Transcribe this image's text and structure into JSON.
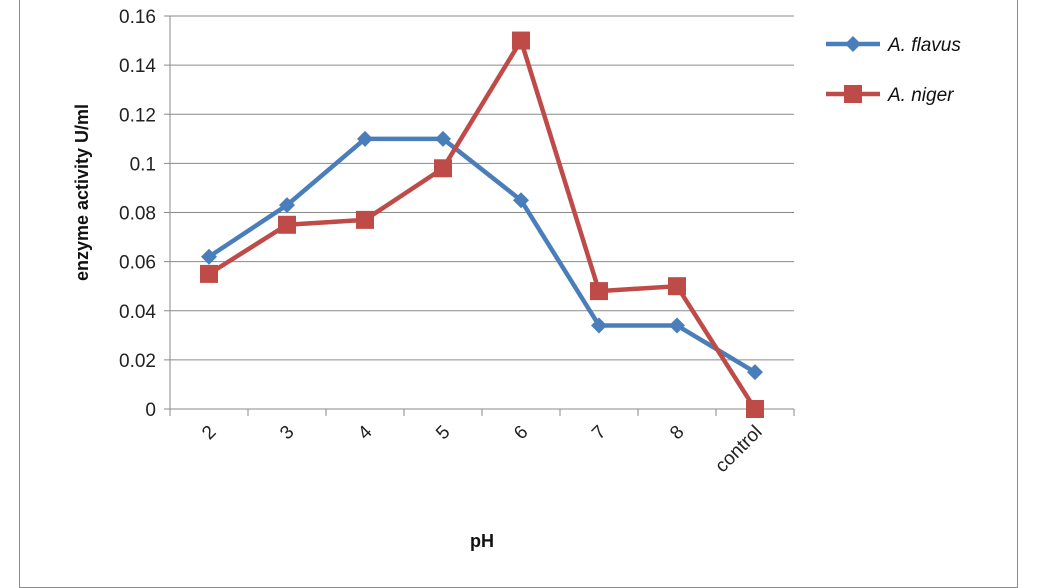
{
  "chart_data": {
    "type": "line",
    "categories": [
      "2",
      "3",
      "4",
      "5",
      "6",
      "7",
      "8",
      "control"
    ],
    "series": [
      {
        "name": "A. flavus",
        "color": "#4a7ebb",
        "marker": "diamond",
        "values": [
          0.062,
          0.083,
          0.11,
          0.11,
          0.085,
          0.034,
          0.034,
          0.015
        ]
      },
      {
        "name": "A. niger",
        "color": "#be4b48",
        "marker": "square",
        "values": [
          0.055,
          0.075,
          0.077,
          0.098,
          0.15,
          0.048,
          0.05,
          0.0
        ]
      }
    ],
    "yticks": [
      "0",
      "0.02",
      "0.04",
      "0.06",
      "0.08",
      "0.1",
      "0.12",
      "0.14",
      "0.16"
    ],
    "ylim": [
      0,
      0.16
    ],
    "xlabel": "pH",
    "ylabel": "enzyme activity U/ml",
    "grid": true,
    "legend_position": "right"
  }
}
